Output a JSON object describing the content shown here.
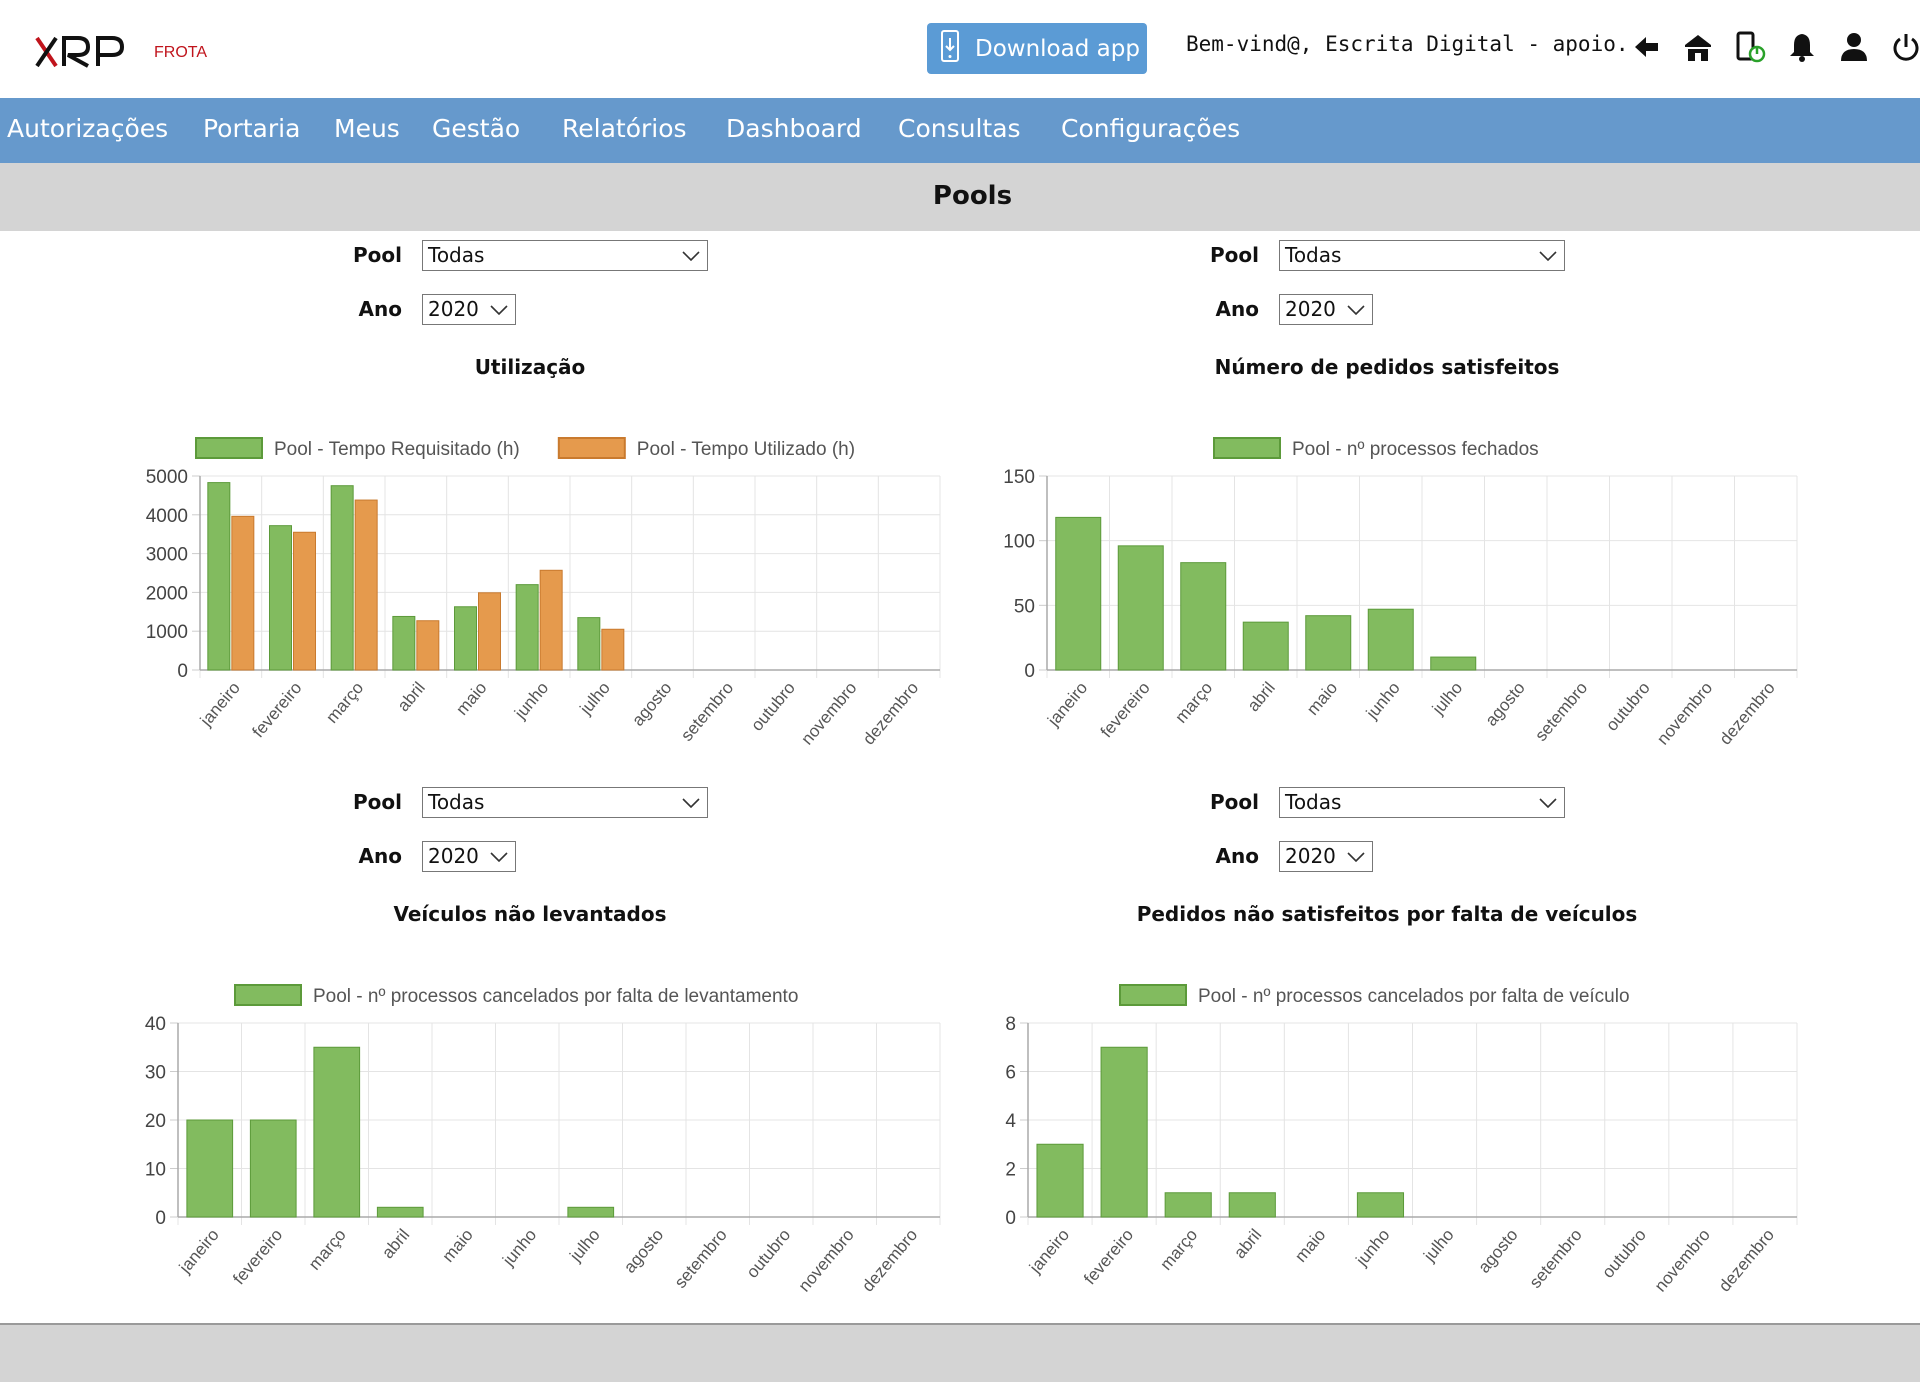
{
  "header": {
    "logo_sub": "FROTA",
    "download_label": "Download app",
    "welcome": "Bem-vind@, Escrita Digital - apoio.",
    "icons": [
      "back-arrow-icon",
      "home-icon",
      "mobile-power-icon",
      "bell-icon",
      "user-icon",
      "power-icon"
    ]
  },
  "nav": {
    "items": [
      "Autorizações",
      "Portaria",
      "Meus",
      "Gestão",
      "Relatórios",
      "Dashboard",
      "Consultas",
      "Configurações"
    ]
  },
  "page": {
    "title": "Pools"
  },
  "panels": [
    {
      "pool_label": "Pool",
      "pool_value": "Todas",
      "year_label": "Ano",
      "year_value": "2020",
      "title": "Utilização"
    },
    {
      "pool_label": "Pool",
      "pool_value": "Todas",
      "year_label": "Ano",
      "year_value": "2020",
      "title": "Número de pedidos satisfeitos"
    },
    {
      "pool_label": "Pool",
      "pool_value": "Todas",
      "year_label": "Ano",
      "year_value": "2020",
      "title": "Veículos não levantados"
    },
    {
      "pool_label": "Pool",
      "pool_value": "Todas",
      "year_label": "Ano",
      "year_value": "2020",
      "title": "Pedidos não satisfeitos por falta de veículos"
    }
  ],
  "colors": {
    "green": "#82bb5f",
    "orange": "#e59a4d",
    "nav": "#6699cc",
    "button": "#5b9bd5",
    "logo_red": "#c0141c"
  },
  "chart_data": [
    {
      "type": "bar",
      "categories": [
        "janeiro",
        "fevereiro",
        "março",
        "abril",
        "maio",
        "junho",
        "julho",
        "agosto",
        "setembro",
        "outubro",
        "novembro",
        "dezembro"
      ],
      "series": [
        {
          "name": "Pool - Tempo Requisitado (h)",
          "values": [
            4830,
            3720,
            4750,
            1380,
            1630,
            2200,
            1350,
            0,
            0,
            0,
            0,
            0
          ]
        },
        {
          "name": "Pool - Tempo Utilizado (h)",
          "values": [
            3960,
            3550,
            4380,
            1270,
            1990,
            2570,
            1050,
            0,
            0,
            0,
            0,
            0
          ]
        }
      ],
      "ylim": [
        0,
        5000
      ],
      "yticks": [
        0,
        1000,
        2000,
        3000,
        4000,
        5000
      ],
      "legend": "top",
      "grid": true
    },
    {
      "type": "bar",
      "categories": [
        "janeiro",
        "fevereiro",
        "março",
        "abril",
        "maio",
        "junho",
        "julho",
        "agosto",
        "setembro",
        "outubro",
        "novembro",
        "dezembro"
      ],
      "series": [
        {
          "name": "Pool - nº processos fechados",
          "values": [
            118,
            96,
            83,
            37,
            42,
            47,
            10,
            0,
            0,
            0,
            0,
            0
          ]
        }
      ],
      "ylim": [
        0,
        150
      ],
      "yticks": [
        0,
        50,
        100,
        150
      ],
      "legend": "top",
      "grid": true
    },
    {
      "type": "bar",
      "categories": [
        "janeiro",
        "fevereiro",
        "março",
        "abril",
        "maio",
        "junho",
        "julho",
        "agosto",
        "setembro",
        "outubro",
        "novembro",
        "dezembro"
      ],
      "series": [
        {
          "name": "Pool - nº processos cancelados por falta de levantamento",
          "values": [
            20,
            20,
            35,
            2,
            0,
            0,
            2,
            0,
            0,
            0,
            0,
            0
          ]
        }
      ],
      "ylim": [
        0,
        40
      ],
      "yticks": [
        0,
        10,
        20,
        30,
        40
      ],
      "legend": "top",
      "grid": true
    },
    {
      "type": "bar",
      "categories": [
        "janeiro",
        "fevereiro",
        "março",
        "abril",
        "maio",
        "junho",
        "julho",
        "agosto",
        "setembro",
        "outubro",
        "novembro",
        "dezembro"
      ],
      "series": [
        {
          "name": "Pool - nº processos cancelados por falta de veículo",
          "values": [
            3,
            7,
            1,
            1,
            0,
            1,
            0,
            0,
            0,
            0,
            0,
            0
          ]
        }
      ],
      "ylim": [
        0,
        8
      ],
      "yticks": [
        0,
        2,
        4,
        6,
        8
      ],
      "legend": "top",
      "grid": true
    }
  ]
}
